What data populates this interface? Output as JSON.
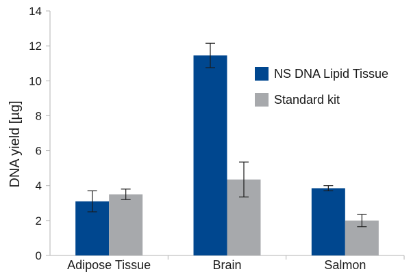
{
  "chart_data": {
    "type": "bar",
    "title": "",
    "xlabel": "",
    "ylabel": "DNA yield [µg]",
    "ylim": [
      0,
      14
    ],
    "yticks": [
      0,
      2,
      4,
      6,
      8,
      10,
      12,
      14
    ],
    "grid": false,
    "legend_position": "top-right",
    "categories": [
      "Adipose Tissue",
      "Brain",
      "Salmon"
    ],
    "series": [
      {
        "name": "NS DNA Lipid Tissue",
        "color": "#00478f",
        "values": [
          3.1,
          11.45,
          3.85
        ],
        "errors": [
          0.6,
          0.7,
          0.15
        ]
      },
      {
        "name": "Standard kit",
        "color": "#a7a9ac",
        "values": [
          3.5,
          4.35,
          2.0
        ],
        "errors": [
          0.3,
          1.0,
          0.35
        ]
      }
    ]
  }
}
